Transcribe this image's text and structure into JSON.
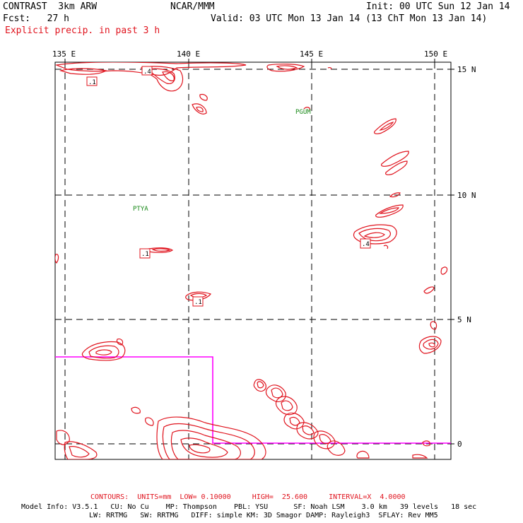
{
  "header": {
    "title": "CONTRAST  3km ARW",
    "center": "NCAR/MMM",
    "init": "Init: 00 UTC Sun 12 Jan 14",
    "fcst": "Fcst:   27 h",
    "valid": "Valid: 03 UTC Mon 13 Jan 14 (13 ChT Mon 13 Jan 14)",
    "field": "Explicit precip. in past 3 h"
  },
  "axes": {
    "lon_labels": [
      "135 E",
      "140 E",
      "145 E",
      "150 E"
    ],
    "lat_labels": [
      "15 N",
      "10 N",
      "5 N",
      "0"
    ]
  },
  "stations": [
    "PGUM",
    "PTYA"
  ],
  "contour_labels": [
    ".4",
    ".1",
    ".1",
    ".4",
    ".1"
  ],
  "footer": {
    "contours": "CONTOURS:  UNITS=mm  LOW= 0.10000     HIGH=  25.600     INTERVAL=X  4.0000",
    "model_line1": "Model Info: V3.5.1   CU: No Cu    MP: Thompson    PBL: YSU      SF: Noah LSM    3.0 km   39 levels   18 sec",
    "model_line2": "LW: RRTMG   SW: RRTMG   DIFF: simple KM: 3D Smagor DAMP: Rayleigh3  SFLAY: Rev MM5"
  },
  "colors": {
    "contour": "#e0141e",
    "station": "#1a8a1a",
    "boundary": "#ff00ff",
    "grid": "#000000"
  }
}
